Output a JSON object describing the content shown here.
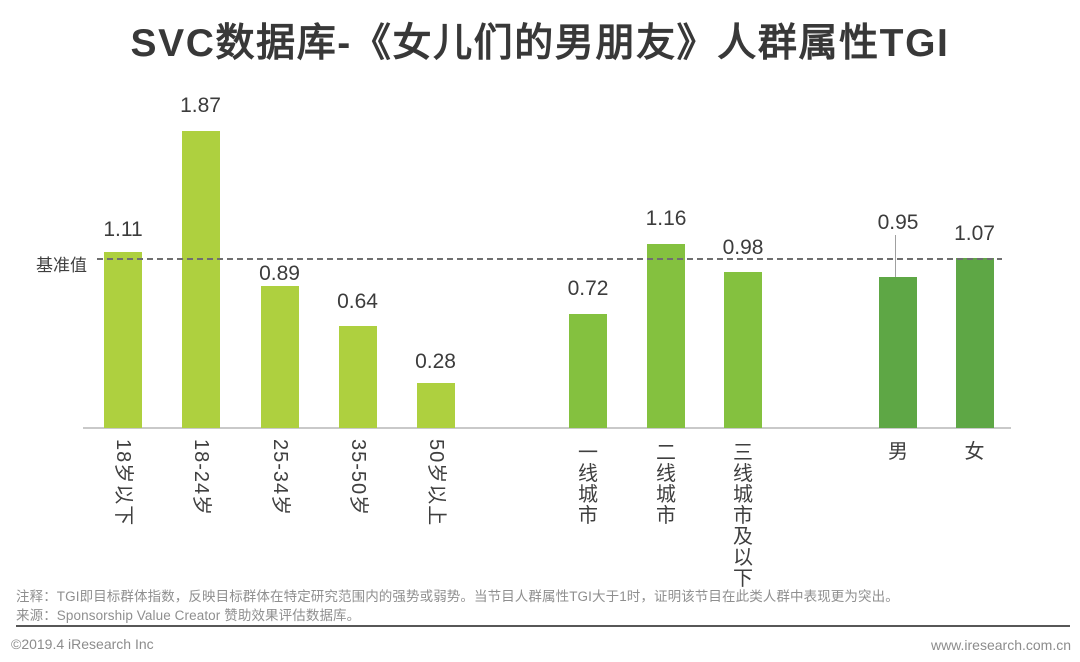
{
  "title": "SVC数据库-《女儿们的男朋友》人群属性TGI",
  "chart_data": {
    "type": "bar",
    "title": "SVC数据库-《女儿们的男朋友》人群属性TGI",
    "ylim": [
      0,
      2.2
    ],
    "grid": false,
    "baseline": {
      "label": "基准值",
      "value": 1.0,
      "style": "dashed"
    },
    "groups": [
      {
        "name": "age",
        "color": "#aed03f",
        "label_style": "rotated",
        "categories": [
          "18岁以下",
          "18-24岁",
          "25-34岁",
          "35-50岁",
          "50岁以上"
        ],
        "values": [
          1.11,
          1.87,
          0.89,
          0.64,
          0.28
        ]
      },
      {
        "name": "city-tier",
        "color": "#84c13f",
        "label_style": "vertical-upright",
        "categories": [
          "一线城市",
          "二线城市",
          "三线城市及以下"
        ],
        "values": [
          0.72,
          1.16,
          0.98
        ]
      },
      {
        "name": "gender",
        "color": "#5ea745",
        "label_style": "horizontal",
        "categories": [
          "男",
          "女"
        ],
        "values": [
          0.95,
          1.07
        ]
      }
    ]
  },
  "footnotes": {
    "note": "注释：TGI即目标群体指数，反映目标群体在特定研究范围内的强势或弱势。当节目人群属性TGI大于1时，证明该节目在此类人群中表现更为突出。",
    "source": "来源：Sponsorship Value Creator 赞助效果评估数据库。"
  },
  "footer": {
    "copyright": "©2019.4 iResearch Inc",
    "website": "www.iresearch.com.cn"
  }
}
